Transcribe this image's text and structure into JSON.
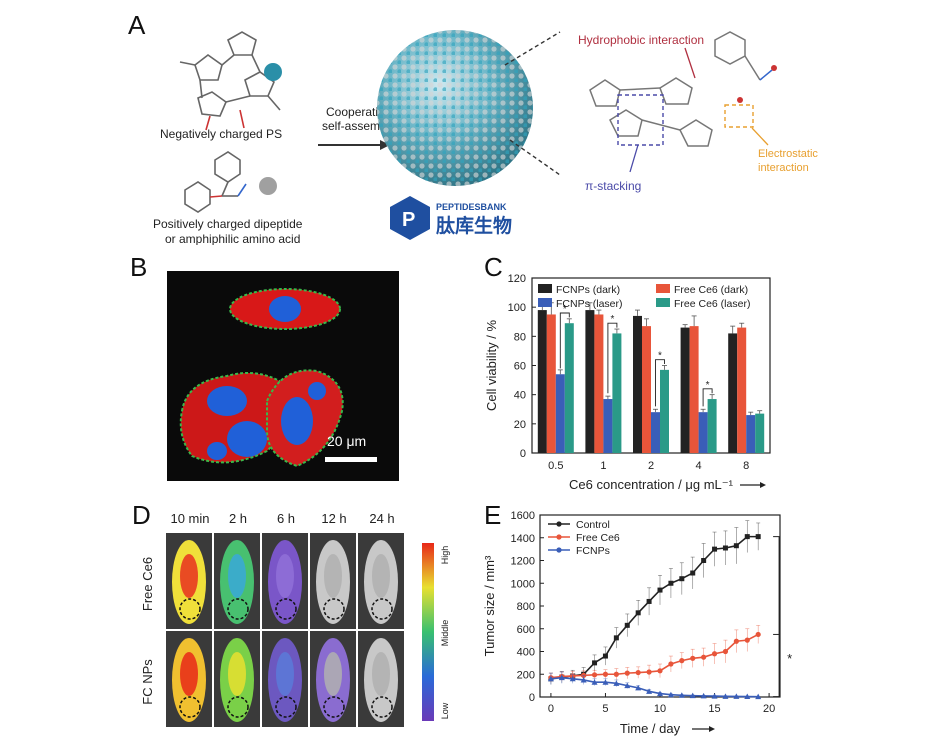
{
  "panel_a": {
    "letter": "A",
    "ps_label": "Negatively charged PS",
    "dipeptide_label_line1": "Positively charged dipeptide",
    "dipeptide_label_line2": "or amphiphilic amino acid",
    "arrow_label_line1": "Cooperative",
    "arrow_label_line2": "self-assembly",
    "hydrophobic_label": "Hydrophobic interaction",
    "electrostatic_label_line1": "Electrostatic",
    "electrostatic_label_line2": "interaction",
    "pi_label": "π-stacking",
    "colors": {
      "hydrophobic": "#b03040",
      "electrostatic": "#e8a030",
      "pi": "#4a4aa8",
      "ps_sphere": "#2a8fa8",
      "dipeptide_sphere": "#a0a0a0"
    }
  },
  "watermark": {
    "brand_en": "PEPTIDESBANK",
    "brand_cn": "肽库生物",
    "color": "#1f4fa0"
  },
  "panel_b": {
    "letter": "B",
    "scale_label": "20 μm"
  },
  "panel_c": {
    "letter": "C",
    "chart_data": {
      "type": "bar",
      "categories": [
        "0.5",
        "1",
        "2",
        "4",
        "8"
      ],
      "xlabel": "Ce6 concentration / μg mL⁻¹",
      "ylabel": "Cell viability / %",
      "ylim": [
        0,
        120
      ],
      "yticks": [
        0,
        20,
        40,
        60,
        80,
        100,
        120
      ],
      "legend": "top",
      "series": [
        {
          "name": "FCNPs (dark)",
          "color": "#222222",
          "values": [
            98,
            98,
            94,
            86,
            82
          ],
          "errors": [
            6,
            5,
            4,
            2,
            5
          ]
        },
        {
          "name": "Free Ce6 (dark)",
          "color": "#e8553a",
          "values": [
            95,
            95,
            87,
            87,
            86
          ],
          "errors": [
            8,
            3,
            5,
            7,
            3
          ]
        },
        {
          "name": "FCNPs (laser)",
          "color": "#3a5eb8",
          "values": [
            54,
            37,
            28,
            28,
            26
          ],
          "errors": [
            3,
            2,
            2,
            2,
            2
          ]
        },
        {
          "name": "Free Ce6 (laser)",
          "color": "#2a9a88",
          "values": [
            89,
            82,
            57,
            37,
            27
          ],
          "errors": [
            3,
            3,
            3,
            3,
            2
          ]
        }
      ],
      "significance": "*"
    }
  },
  "panel_d": {
    "letter": "D",
    "time_labels": [
      "10 min",
      "2 h",
      "6 h",
      "12 h",
      "24 h"
    ],
    "row_labels": [
      "Free Ce6",
      "FC NPs"
    ],
    "colorbar_labels": {
      "high": "High",
      "middle": "Middle",
      "low": "Low"
    }
  },
  "panel_e": {
    "letter": "E",
    "chart_data": {
      "type": "line",
      "xlabel": "Time / day",
      "ylabel": "Tumor size / mm³",
      "xlim": [
        -1,
        21
      ],
      "ylim": [
        0,
        1600
      ],
      "xticks": [
        0,
        5,
        10,
        15,
        20
      ],
      "yticks": [
        0,
        200,
        400,
        600,
        800,
        1000,
        1200,
        1400,
        1600
      ],
      "legend": "top-left",
      "x": [
        0,
        1,
        2,
        3,
        4,
        5,
        6,
        7,
        8,
        9,
        10,
        11,
        12,
        13,
        14,
        15,
        16,
        17,
        18,
        19,
        20
      ],
      "series": [
        {
          "name": "Control",
          "color": "#222222",
          "marker": "square",
          "values": [
            160,
            175,
            185,
            200,
            300,
            360,
            520,
            630,
            740,
            840,
            940,
            1000,
            1040,
            1090,
            1200,
            1300,
            1310,
            1330,
            1410,
            1410,
            null
          ],
          "errors": [
            50,
            50,
            50,
            60,
            70,
            80,
            90,
            100,
            110,
            120,
            130,
            130,
            140,
            140,
            150,
            150,
            150,
            160,
            140,
            120,
            null
          ]
        },
        {
          "name": "Free Ce6",
          "color": "#e8553a",
          "marker": "circle",
          "values": [
            170,
            180,
            185,
            190,
            195,
            200,
            200,
            210,
            215,
            220,
            230,
            290,
            320,
            340,
            350,
            380,
            400,
            490,
            500,
            550,
            null
          ],
          "errors": [
            40,
            40,
            40,
            40,
            40,
            40,
            50,
            50,
            50,
            60,
            60,
            70,
            70,
            80,
            80,
            90,
            100,
            100,
            100,
            80,
            null
          ]
        },
        {
          "name": "FCNPs",
          "color": "#3a5eb8",
          "marker": "triangle",
          "values": [
            160,
            170,
            160,
            150,
            130,
            130,
            120,
            100,
            80,
            50,
            30,
            20,
            15,
            12,
            10,
            8,
            6,
            5,
            4,
            3,
            null
          ],
          "errors": [
            50,
            50,
            40,
            40,
            30,
            30,
            30,
            25,
            20,
            15,
            10,
            8,
            6,
            5,
            4,
            3,
            2,
            2,
            2,
            2,
            null
          ]
        }
      ],
      "significance": "*"
    }
  }
}
